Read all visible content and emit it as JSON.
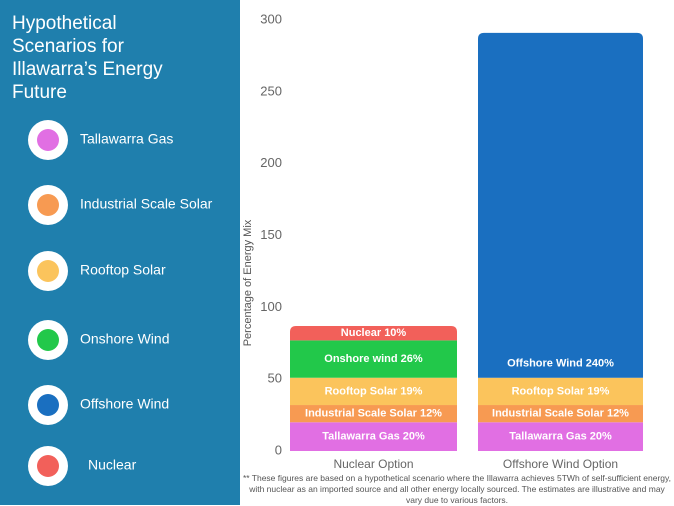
{
  "chart_data": {
    "type": "bar",
    "stacked": true,
    "title": "Hypothetical Scenarios for Illawarra’s Energy Future",
    "y_label": "Percentage of Energy Mix",
    "footnote": "** These figures are based on a hypothetical scenario where the Illawarra achieves 5TWh of self-sufficient energy, with nuclear as an imported source and all other energy locally sourced. The estimates are illustrative and may vary due to various factors.",
    "categories": [
      "Nuclear Option",
      "Offshore Wind Option"
    ],
    "ylim": [
      0,
      300
    ],
    "yticks": [
      0,
      50,
      100,
      150,
      200,
      250,
      300
    ],
    "grid": false,
    "series": [
      {
        "name": "Tallawarra Gas",
        "color": "#e16fe3",
        "values": [
          20,
          20
        ],
        "value_labels": [
          "Tallawarra Gas 20%",
          "Tallawarra Gas 20%"
        ]
      },
      {
        "name": "Industrial Scale Solar",
        "color": "#f79a52",
        "values": [
          12,
          12
        ],
        "value_labels": [
          "Industrial Scale Solar 12%",
          "Industrial Scale Solar 12%"
        ]
      },
      {
        "name": "Rooftop Solar",
        "color": "#fbc45c",
        "values": [
          19,
          19
        ],
        "value_labels": [
          "Rooftop Solar 19%",
          "Rooftop Solar 19%"
        ]
      },
      {
        "name": "Onshore Wind",
        "color": "#22c84a",
        "values": [
          26,
          null
        ],
        "value_labels": [
          "Onshore wind 26%",
          null
        ]
      },
      {
        "name": "Offshore Wind",
        "color": "#1a6fc0",
        "values": [
          null,
          240
        ],
        "value_labels": [
          null,
          "Offshore Wind 240%"
        ]
      },
      {
        "name": "Nuclear",
        "color": "#f2605a",
        "values": [
          10,
          null
        ],
        "value_labels": [
          "Nuclear 10%",
          null
        ]
      }
    ]
  }
}
